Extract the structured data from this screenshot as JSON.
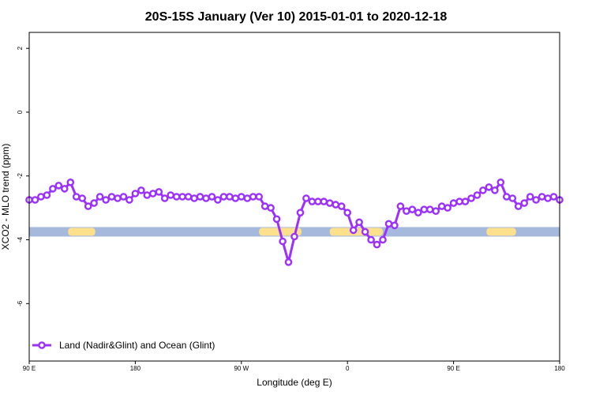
{
  "chart_data": {
    "type": "line",
    "title": "20S-15S January (Ver 10)   2015-01-01 to 2020-12-18",
    "xlabel": "Longitude (deg E)",
    "ylabel": "XCO2 - MLO trend (ppm)",
    "xlim": [
      90,
      540
    ],
    "ylim": [
      -7.8,
      2.5
    ],
    "x_ticks": [
      {
        "value": 90,
        "label": "90 E"
      },
      {
        "value": 180,
        "label": "180"
      },
      {
        "value": 270,
        "label": "90 W"
      },
      {
        "value": 360,
        "label": "0"
      },
      {
        "value": 450,
        "label": "90 E"
      },
      {
        "value": 540,
        "label": "180"
      }
    ],
    "y_ticks": [
      {
        "value": 2,
        "label": "2"
      },
      {
        "value": 0,
        "label": "0"
      },
      {
        "value": -2,
        "label": "-2"
      },
      {
        "value": -4,
        "label": "-4"
      },
      {
        "value": -6,
        "label": "-6"
      }
    ],
    "series": [
      {
        "name": "Land (Nadir&Glint) and Ocean (Glint)",
        "color": "#9b30ff",
        "x": [
          90,
          95,
          100,
          105,
          110,
          115,
          120,
          125,
          130,
          135,
          140,
          145,
          150,
          155,
          160,
          165,
          170,
          175,
          180,
          185,
          190,
          195,
          200,
          205,
          210,
          215,
          220,
          225,
          230,
          235,
          240,
          245,
          250,
          255,
          260,
          265,
          270,
          275,
          280,
          285,
          290,
          295,
          300,
          305,
          310,
          315,
          320,
          325,
          330,
          335,
          340,
          345,
          350,
          355,
          360,
          365,
          370,
          375,
          380,
          385,
          390,
          395,
          400,
          405,
          410,
          415,
          420,
          425,
          430,
          435,
          440,
          445,
          450,
          455,
          460,
          465,
          470,
          475,
          480,
          485,
          490,
          495,
          500,
          505,
          510,
          515,
          520,
          525,
          530,
          535,
          540
        ],
        "y": [
          -2.75,
          -2.75,
          -2.65,
          -2.6,
          -2.4,
          -2.3,
          -2.4,
          -2.2,
          -2.65,
          -2.7,
          -2.95,
          -2.85,
          -2.65,
          -2.75,
          -2.65,
          -2.7,
          -2.65,
          -2.75,
          -2.55,
          -2.45,
          -2.6,
          -2.55,
          -2.5,
          -2.7,
          -2.6,
          -2.65,
          -2.65,
          -2.65,
          -2.7,
          -2.65,
          -2.7,
          -2.65,
          -2.75,
          -2.65,
          -2.65,
          -2.7,
          -2.65,
          -2.7,
          -2.65,
          -2.65,
          -2.95,
          -3.0,
          -3.35,
          -4.05,
          -4.7,
          -3.9,
          -3.15,
          -2.7,
          -2.8,
          -2.8,
          -2.8,
          -2.85,
          -2.9,
          -2.95,
          -3.15,
          -3.7,
          -3.45,
          -3.75,
          -4.0,
          -4.15,
          -4.0,
          -3.5,
          -3.55,
          -2.95,
          -3.1,
          -3.05,
          -3.15,
          -3.05,
          -3.05,
          -3.1,
          -2.95,
          -3.0,
          -2.85,
          -2.8,
          -2.8,
          -2.7,
          -2.6,
          -2.45,
          -2.35,
          -2.45,
          -2.2,
          -2.65,
          -2.7,
          -2.95,
          -2.85,
          -2.65,
          -2.75,
          -2.65,
          -2.7,
          -2.65,
          -2.75
        ]
      }
    ],
    "coverage_band": {
      "y": -3.75,
      "ocean_color": "#a4b9dc",
      "land_color": "#fde08b",
      "land_segments": [
        [
          123,
          146
        ],
        [
          285,
          321
        ],
        [
          345,
          390
        ],
        [
          478,
          503
        ]
      ]
    },
    "legend": {
      "position": "bottom-left",
      "label": "Land (Nadir&Glint) and Ocean (Glint)"
    }
  }
}
